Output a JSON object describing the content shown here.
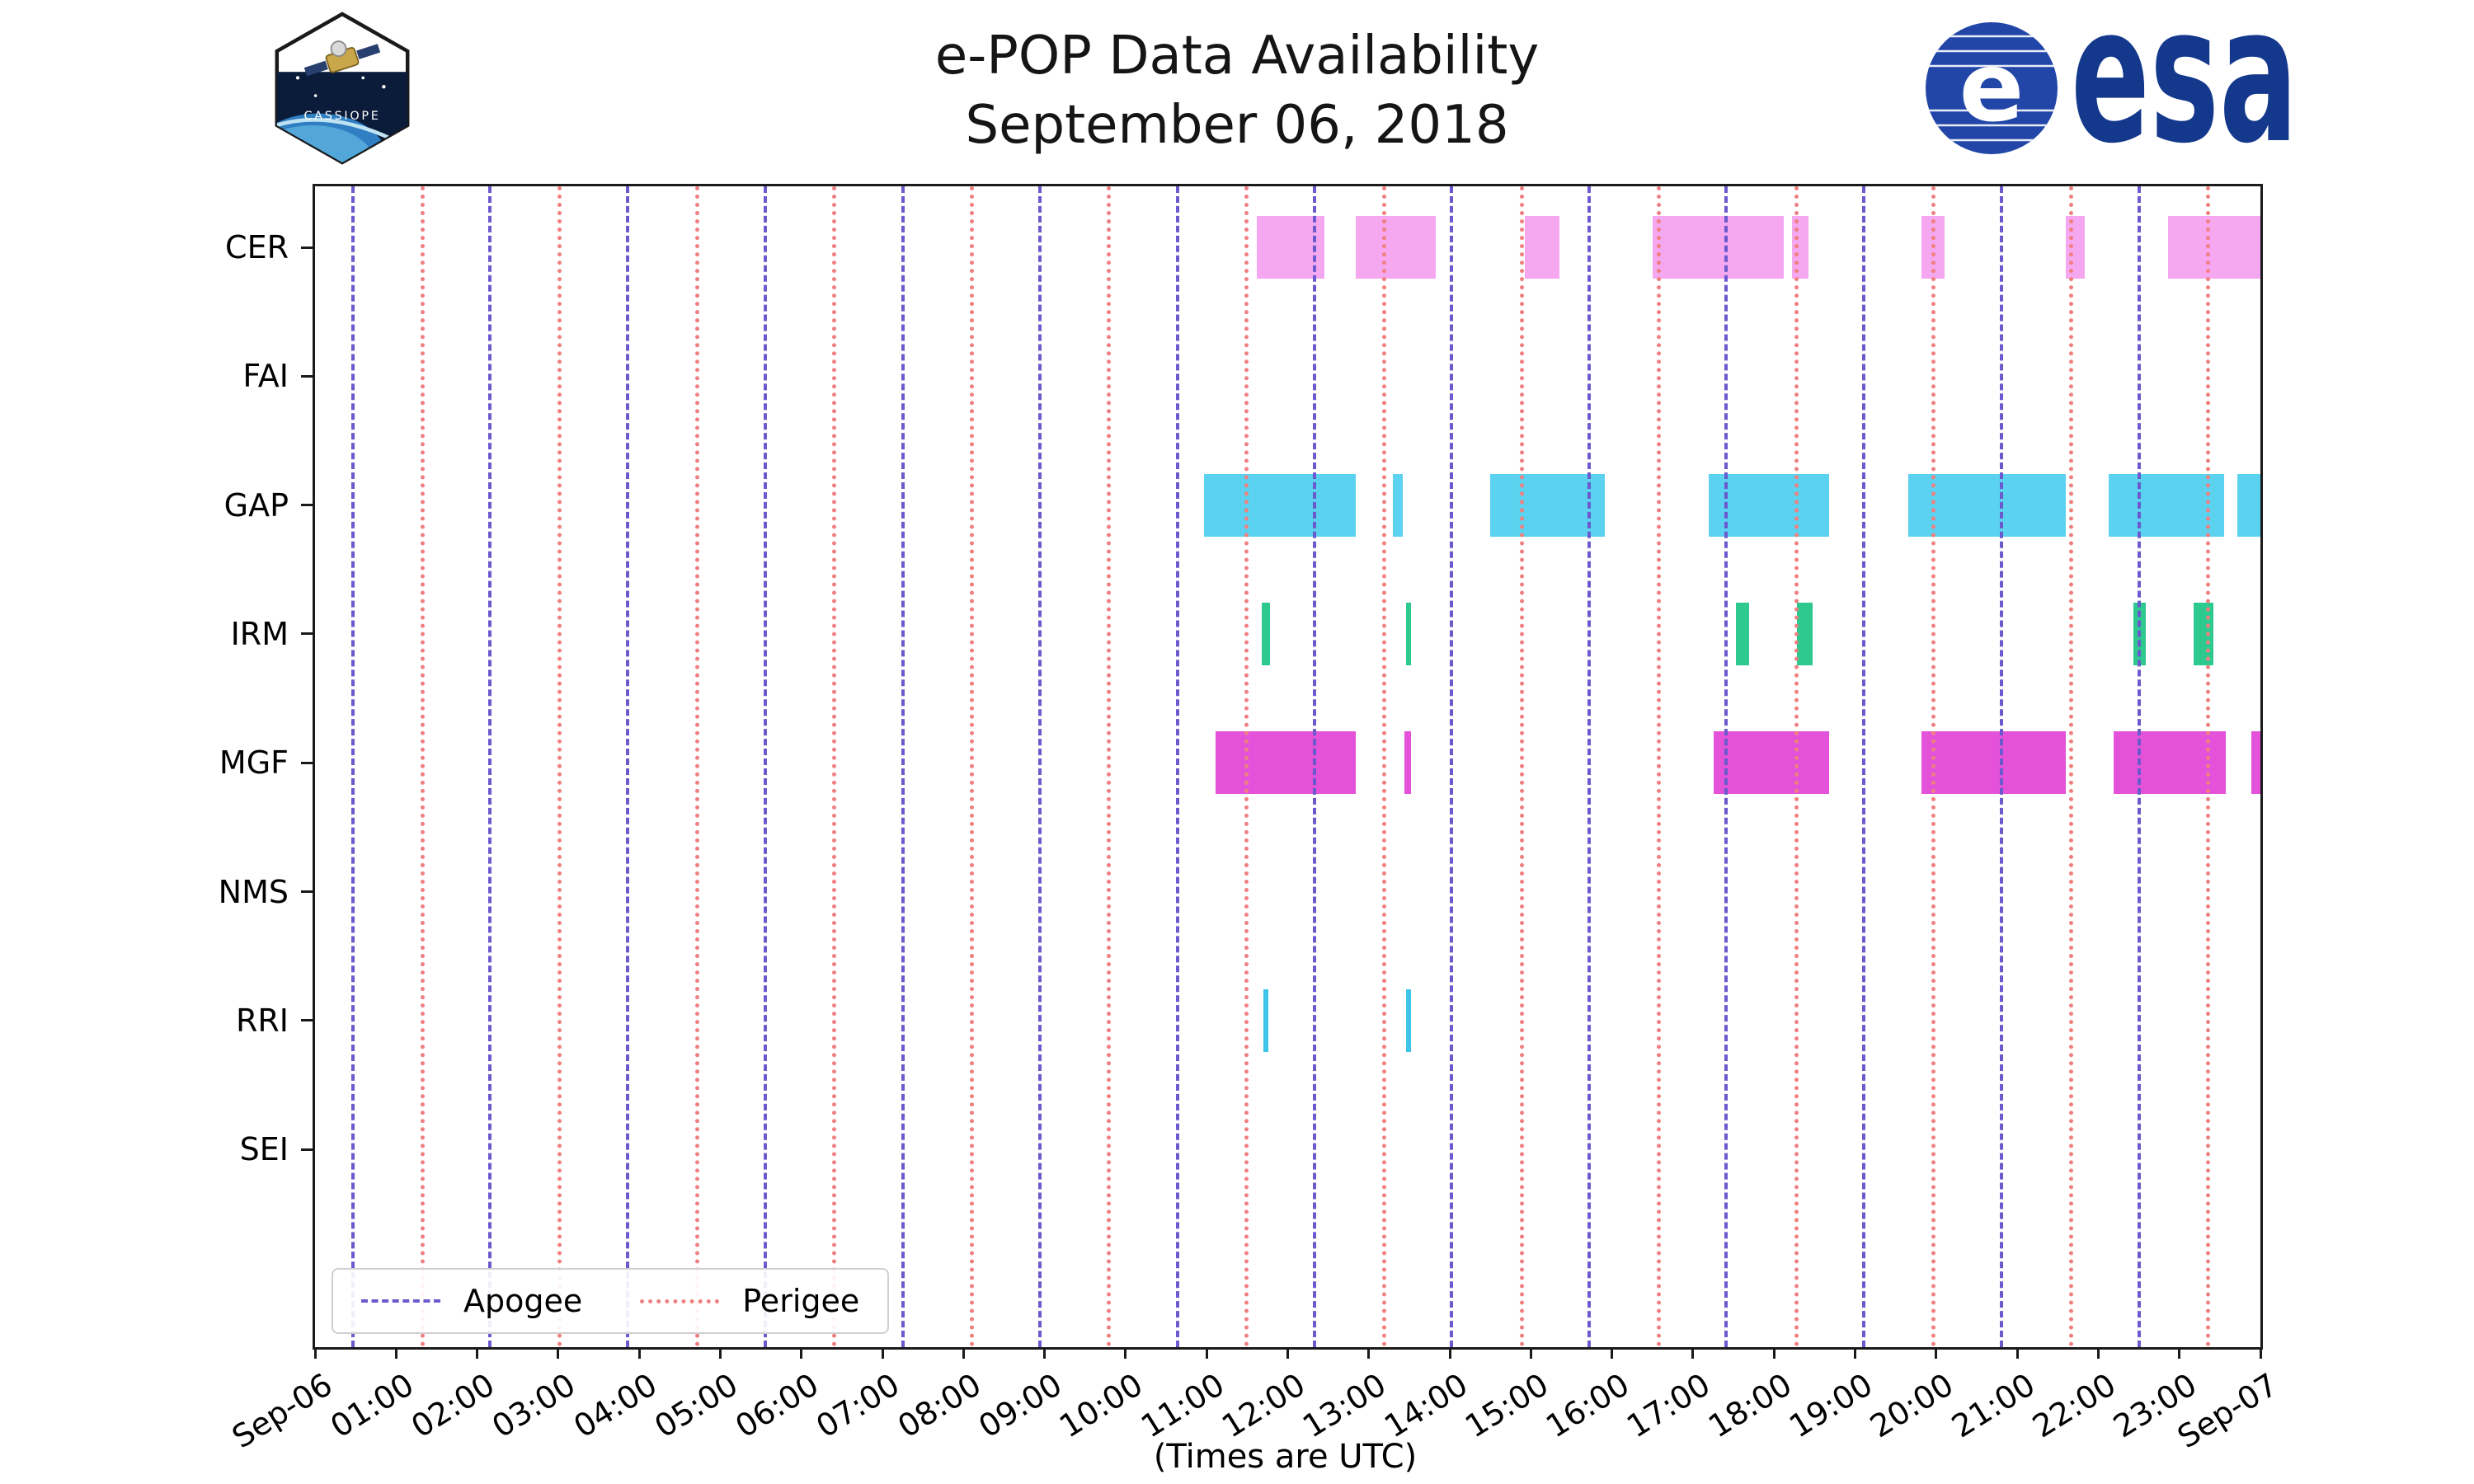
{
  "header": {
    "title_line1": "e-POP Data Availability",
    "title_line2": "September 06, 2018",
    "cassiope_patch_label": "CASSIOPE",
    "esa_wordmark": "esa",
    "esa_blue": "#14398c"
  },
  "chart_data": {
    "type": "bar",
    "orientation": "horizontal-interval-timeline",
    "title": "e-POP Data Availability",
    "subtitle": "September 06, 2018",
    "xlabel": "(Times are UTC)",
    "x_axis": {
      "unit": "hours UTC",
      "min": 0,
      "max": 24,
      "tick_labels": [
        "Sep-06",
        "01:00",
        "02:00",
        "03:00",
        "04:00",
        "05:00",
        "06:00",
        "07:00",
        "08:00",
        "09:00",
        "10:00",
        "11:00",
        "12:00",
        "13:00",
        "14:00",
        "15:00",
        "16:00",
        "17:00",
        "18:00",
        "19:00",
        "20:00",
        "21:00",
        "22:00",
        "23:00",
        "Sep-07"
      ]
    },
    "instruments": [
      "CER",
      "FAI",
      "GAP",
      "IRM",
      "MGF",
      "NMS",
      "RRI",
      "SEI"
    ],
    "series": [
      {
        "name": "CER",
        "color": "#f5a8f0",
        "intervals": [
          [
            11.62,
            12.45
          ],
          [
            12.84,
            13.83
          ],
          [
            14.92,
            15.35
          ],
          [
            16.5,
            18.12
          ],
          [
            18.22,
            18.42
          ],
          [
            19.82,
            20.1
          ],
          [
            21.6,
            21.83
          ],
          [
            22.86,
            24.0
          ]
        ]
      },
      {
        "name": "FAI",
        "color": null,
        "intervals": []
      },
      {
        "name": "GAP",
        "color": "#5bd2f0",
        "intervals": [
          [
            10.97,
            12.84
          ],
          [
            13.3,
            13.42
          ],
          [
            14.5,
            15.91
          ],
          [
            17.19,
            18.68
          ],
          [
            19.66,
            21.6
          ],
          [
            22.13,
            23.55
          ],
          [
            23.71,
            24.0
          ]
        ]
      },
      {
        "name": "IRM",
        "color": "#2ec98f",
        "intervals": [
          [
            11.68,
            11.78
          ],
          [
            13.46,
            13.52
          ],
          [
            17.53,
            17.69
          ],
          [
            18.28,
            18.48
          ],
          [
            22.43,
            22.59
          ],
          [
            23.18,
            23.42
          ]
        ]
      },
      {
        "name": "MGF",
        "color": "#e352d9",
        "intervals": [
          [
            11.11,
            12.84
          ],
          [
            13.44,
            13.52
          ],
          [
            17.25,
            18.68
          ],
          [
            19.82,
            21.6
          ],
          [
            22.19,
            23.57
          ],
          [
            23.89,
            24.0
          ]
        ]
      },
      {
        "name": "NMS",
        "color": null,
        "intervals": []
      },
      {
        "name": "RRI",
        "color": "#3cc5e8",
        "intervals": [
          [
            11.7,
            11.76
          ],
          [
            13.46,
            13.52
          ]
        ]
      },
      {
        "name": "SEI",
        "color": null,
        "intervals": []
      }
    ],
    "apogee": {
      "label": "Apogee",
      "color": "#6a5acd",
      "style": "dashed",
      "hours": [
        0.45,
        2.14,
        3.84,
        5.53,
        7.23,
        8.92,
        10.62,
        12.31,
        14.0,
        15.7,
        17.39,
        19.09,
        20.78,
        22.48
      ]
    },
    "perigee": {
      "label": "Perigee",
      "color": "#f08080",
      "style": "dotted",
      "hours": [
        1.3,
        2.99,
        4.69,
        6.38,
        8.08,
        9.77,
        11.47,
        13.16,
        14.86,
        16.55,
        18.25,
        19.94,
        21.64,
        23.33
      ]
    },
    "legend": {
      "position": "lower left"
    }
  }
}
